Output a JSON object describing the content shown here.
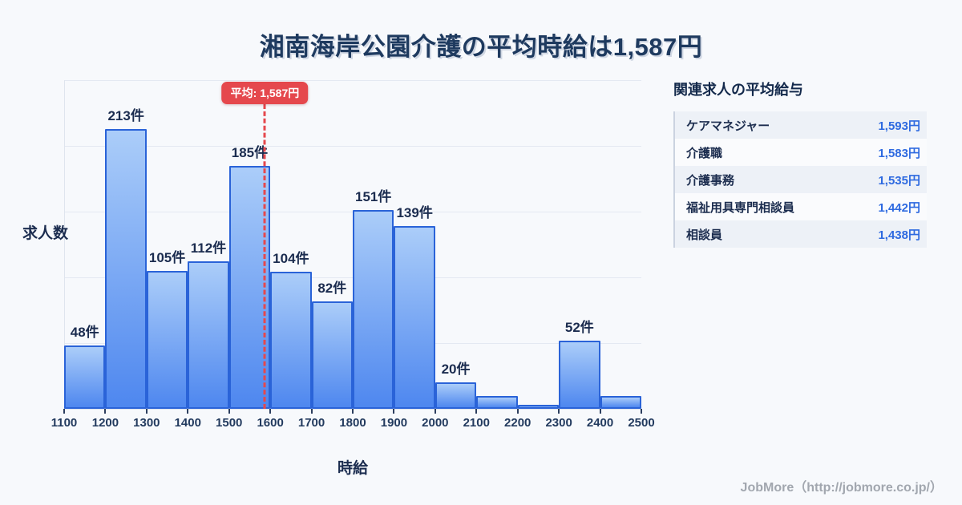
{
  "title": "湘南海岸公園介護の平均時給は1,587円",
  "chart_data": {
    "type": "bar",
    "title": "湘南海岸公園介護の平均時給は1,587円",
    "xlabel": "時給",
    "ylabel": "求人数",
    "x_ticks": [
      "1100",
      "1200",
      "1300",
      "1400",
      "1500",
      "1600",
      "1700",
      "1800",
      "1900",
      "2000",
      "2100",
      "2200",
      "2300",
      "2400",
      "2500"
    ],
    "x_range": [
      1100,
      2500
    ],
    "bin_width": 100,
    "ylim": [
      0,
      250
    ],
    "grid_step": 50,
    "grid_on": true,
    "values": [
      48,
      213,
      105,
      112,
      185,
      104,
      82,
      151,
      139,
      20,
      10,
      3,
      52,
      10
    ],
    "bar_labels": [
      "48件",
      "213件",
      "105件",
      "112件",
      "185件",
      "104件",
      "82件",
      "151件",
      "139件",
      "20件",
      "",
      "",
      "52件",
      ""
    ],
    "average": {
      "value": 1587,
      "label": "平均: 1,587円"
    }
  },
  "panel": {
    "title": "関連求人の平均給与",
    "rows": [
      {
        "label": "ケアマネジャー",
        "value": "1,593円"
      },
      {
        "label": "介護職",
        "value": "1,583円"
      },
      {
        "label": "介護事務",
        "value": "1,535円"
      },
      {
        "label": "福祉用具専門相談員",
        "value": "1,442円"
      },
      {
        "label": "相談員",
        "value": "1,438円"
      }
    ]
  },
  "footer": {
    "credit": "JobMore（http://jobmore.co.jp/）"
  },
  "colors": {
    "background": "#f7f9fc",
    "title_text": "#1e3a5f",
    "bar_fill_top": "#abcdf9",
    "bar_fill_bottom": "#4e87ef",
    "bar_border": "#2a63d8",
    "average_red": "#e5484d",
    "value_blue": "#2e6ae0",
    "gridline": "#e4e9f2"
  }
}
